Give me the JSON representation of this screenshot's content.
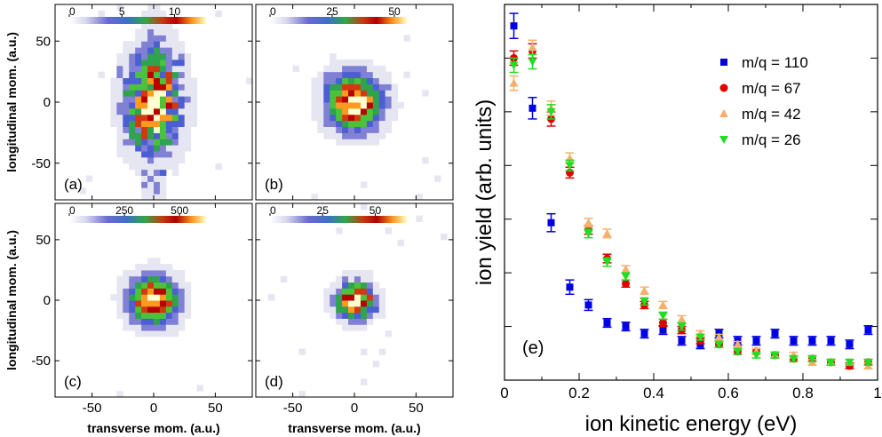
{
  "chart_data": [
    {
      "type": "heatmap",
      "panel": "(a)",
      "x_ticks": [
        "-50",
        "0",
        "50"
      ],
      "y_ticks": [
        "50",
        "0",
        "-50"
      ],
      "xlabel": "",
      "ylabel": "longitudinal mom. (a.u.)",
      "xlim": [
        -80,
        80
      ],
      "ylim": [
        -80,
        80
      ],
      "colorbar": {
        "ticks": [
          "0",
          "5",
          "10"
        ],
        "range": [
          0,
          13
        ]
      },
      "spread": {
        "sx": 14,
        "sy": 26
      },
      "density": 0.55,
      "noise": 0.9
    },
    {
      "type": "heatmap",
      "panel": "(b)",
      "x_ticks": [
        "-50",
        "0",
        "50"
      ],
      "y_ticks": [
        "50",
        "0",
        "-50"
      ],
      "xlabel": "",
      "ylabel": "",
      "xlim": [
        -80,
        80
      ],
      "ylim": [
        -80,
        80
      ],
      "colorbar": {
        "ticks": [
          "0",
          "25",
          "50"
        ],
        "range": [
          0,
          55
        ]
      },
      "spread": {
        "sx": 15,
        "sy": 15
      },
      "density": 0.85,
      "noise": 0.45
    },
    {
      "type": "heatmap",
      "panel": "(c)",
      "x_ticks": [
        "-50",
        "0",
        "50"
      ],
      "y_ticks": [
        "50",
        "0",
        "-50"
      ],
      "xlabel": "transverse mom. (a.u.)",
      "ylabel": "longitudinal mom. (a.u.)",
      "xlim": [
        -80,
        80
      ],
      "ylim": [
        -80,
        80
      ],
      "colorbar": {
        "ticks": [
          "0",
          "250",
          "500"
        ],
        "range": [
          0,
          620
        ]
      },
      "spread": {
        "sx": 13,
        "sy": 13
      },
      "density": 1.0,
      "noise": 0.12
    },
    {
      "type": "heatmap",
      "panel": "(d)",
      "x_ticks": [
        "-50",
        "0",
        "50"
      ],
      "y_ticks": [
        "50",
        "0",
        "-50"
      ],
      "xlabel": "transverse mom. (a.u.)",
      "ylabel": "",
      "xlim": [
        -80,
        80
      ],
      "ylim": [
        -80,
        80
      ],
      "colorbar": {
        "ticks": [
          "0",
          "25",
          "50"
        ],
        "range": [
          0,
          65
        ]
      },
      "spread": {
        "sx": 10,
        "sy": 10
      },
      "density": 0.8,
      "noise": 0.5
    },
    {
      "type": "scatter",
      "panel": "(e)",
      "xlabel": "ion kinetic energy (eV)",
      "ylabel": "ion yield (arb. units)",
      "xlim": [
        0,
        1
      ],
      "ylim": [
        0,
        1.05
      ],
      "x_ticks": [
        "0",
        "0.2",
        "0.4",
        "0.6",
        "0.8",
        "1"
      ],
      "legend_position": "top-right",
      "x": [
        0.025,
        0.075,
        0.125,
        0.175,
        0.225,
        0.275,
        0.325,
        0.375,
        0.425,
        0.475,
        0.525,
        0.575,
        0.625,
        0.675,
        0.725,
        0.775,
        0.825,
        0.875,
        0.925,
        0.975
      ],
      "series": [
        {
          "name": "m/q = 110",
          "color": "#0000e6",
          "marker": "square",
          "values": [
            0.99,
            0.76,
            0.44,
            0.26,
            0.21,
            0.16,
            0.15,
            0.13,
            0.14,
            0.11,
            0.1,
            0.13,
            0.11,
            0.11,
            0.13,
            0.11,
            0.11,
            0.11,
            0.1,
            0.14
          ],
          "errors": [
            0.035,
            0.03,
            0.025,
            0.02,
            0.015,
            0.012,
            0.012,
            0.012,
            0.012,
            0.012,
            0.012,
            0.012,
            0.012,
            0.012,
            0.012,
            0.012,
            0.012,
            0.012,
            0.012,
            0.012
          ]
        },
        {
          "name": "m/q = 67",
          "color": "#e00000",
          "marker": "circle",
          "values": [
            0.9,
            0.92,
            0.73,
            0.58,
            0.42,
            0.34,
            0.27,
            0.21,
            0.16,
            0.14,
            0.11,
            0.1,
            0.08,
            0.08,
            0.07,
            0.06,
            0.06,
            0.05,
            0.04,
            0.05
          ],
          "errors": [
            0.02,
            0.02,
            0.02,
            0.015,
            0.012,
            0.012,
            0.01,
            0.01,
            0.01,
            0.01,
            0.008,
            0.008,
            0.008,
            0.008,
            0.008,
            0.008,
            0.008,
            0.008,
            0.008,
            0.008
          ]
        },
        {
          "name": "m/q = 42",
          "color": "#f5b06e",
          "marker": "triangle-up",
          "values": [
            0.83,
            0.93,
            0.76,
            0.62,
            0.44,
            0.41,
            0.31,
            0.25,
            0.21,
            0.17,
            0.13,
            0.12,
            0.1,
            0.08,
            0.07,
            0.07,
            0.05,
            0.05,
            0.05,
            0.04
          ],
          "errors": [
            0.02,
            0.02,
            0.02,
            0.015,
            0.012,
            0.012,
            0.01,
            0.01,
            0.01,
            0.01,
            0.008,
            0.008,
            0.008,
            0.008,
            0.008,
            0.008,
            0.008,
            0.008,
            0.008,
            0.008
          ]
        },
        {
          "name": "m/q = 26",
          "color": "#22dd22",
          "marker": "triangle-down",
          "values": [
            0.88,
            0.89,
            0.75,
            0.6,
            0.41,
            0.33,
            0.29,
            0.22,
            0.18,
            0.15,
            0.12,
            0.1,
            0.08,
            0.07,
            0.07,
            0.06,
            0.06,
            0.05,
            0.05,
            0.05
          ],
          "errors": [
            0.02,
            0.02,
            0.02,
            0.015,
            0.012,
            0.012,
            0.01,
            0.01,
            0.01,
            0.01,
            0.008,
            0.008,
            0.008,
            0.008,
            0.008,
            0.008,
            0.008,
            0.008,
            0.008,
            0.008
          ]
        }
      ]
    }
  ],
  "colorscale": [
    "#ffffff",
    "#e6e6f2",
    "#8080d4",
    "#4b5fd2",
    "#2fa34d",
    "#4cc23a",
    "#d03a10",
    "#b80000",
    "#ff9a20",
    "#ffffd0"
  ]
}
